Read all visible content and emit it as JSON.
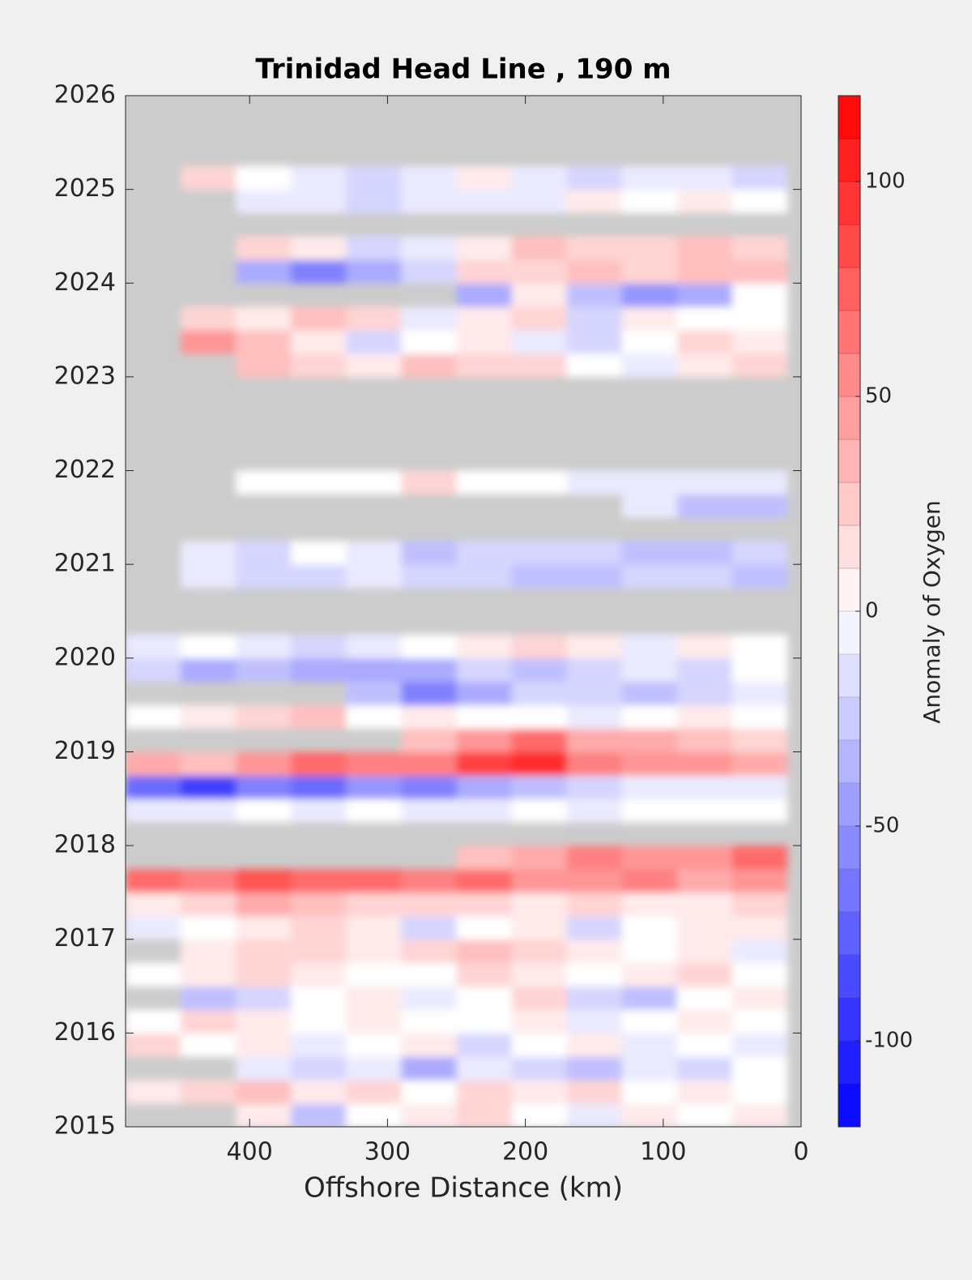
{
  "chart_data": {
    "type": "contour",
    "title": "Trinidad Head Line , 190 m",
    "xlabel": "Offshore Distance (km)",
    "colorbar_label": "Anomaly of Oxygen",
    "xlim": [
      490,
      0
    ],
    "xticks": [
      400,
      300,
      200,
      100,
      0
    ],
    "ylim": [
      2015,
      2026
    ],
    "yticks": [
      2015,
      2016,
      2017,
      2018,
      2019,
      2020,
      2021,
      2022,
      2023,
      2024,
      2025,
      2026
    ],
    "clim": [
      -120,
      120
    ],
    "cticks": [
      -100,
      -50,
      0,
      50,
      100
    ],
    "colormap": [
      "#0000ff",
      "#ffffff",
      "#ff0000"
    ],
    "missing_color": "#cccccc",
    "x": [
      470,
      430,
      390,
      350,
      310,
      270,
      230,
      190,
      150,
      110,
      70,
      30
    ],
    "y": [
      2015.125,
      2015.375,
      2015.625,
      2015.875,
      2016.125,
      2016.375,
      2016.625,
      2016.875,
      2017.125,
      2017.375,
      2017.625,
      2017.875,
      2018.125,
      2018.375,
      2018.625,
      2018.875,
      2019.125,
      2019.375,
      2019.625,
      2019.875,
      2020.125,
      2020.375,
      2020.625,
      2020.875,
      2021.125,
      2021.375,
      2021.625,
      2021.875,
      2022.125,
      2022.375,
      2022.625,
      2022.875,
      2023.125,
      2023.375,
      2023.625,
      2023.875,
      2024.125,
      2024.375,
      2024.625,
      2024.875,
      2025.125,
      2025.375,
      2025.625,
      2025.875
    ],
    "z": [
      [
        null,
        null,
        10,
        -30,
        0,
        10,
        20,
        0,
        -10,
        10,
        0,
        10
      ],
      [
        10,
        20,
        30,
        10,
        20,
        0,
        20,
        10,
        20,
        0,
        10,
        0
      ],
      [
        null,
        null,
        -10,
        -20,
        -10,
        -40,
        -10,
        -20,
        -30,
        -10,
        -20,
        0
      ],
      [
        20,
        0,
        10,
        -10,
        0,
        10,
        -20,
        0,
        10,
        -10,
        0,
        -10
      ],
      [
        0,
        20,
        10,
        0,
        10,
        0,
        0,
        10,
        -10,
        0,
        10,
        0
      ],
      [
        null,
        -30,
        -20,
        0,
        10,
        -10,
        0,
        20,
        -20,
        -30,
        0,
        10
      ],
      [
        0,
        10,
        20,
        10,
        0,
        0,
        20,
        10,
        0,
        10,
        20,
        0
      ],
      [
        null,
        10,
        20,
        20,
        10,
        20,
        30,
        20,
        10,
        0,
        10,
        -10
      ],
      [
        -10,
        0,
        10,
        20,
        10,
        -20,
        0,
        10,
        -20,
        0,
        10,
        10
      ],
      [
        10,
        20,
        40,
        30,
        20,
        20,
        20,
        10,
        20,
        10,
        10,
        20
      ],
      [
        70,
        60,
        80,
        70,
        70,
        60,
        70,
        50,
        50,
        60,
        40,
        50
      ],
      [
        null,
        null,
        null,
        null,
        null,
        null,
        30,
        40,
        60,
        50,
        50,
        70
      ],
      [
        null,
        null,
        null,
        null,
        null,
        null,
        null,
        null,
        null,
        null,
        null,
        null
      ],
      [
        -10,
        -10,
        0,
        -10,
        0,
        -10,
        -10,
        0,
        -10,
        0,
        0,
        0
      ],
      [
        -70,
        -90,
        -60,
        -70,
        -50,
        -60,
        -40,
        -30,
        -20,
        -10,
        -10,
        -10
      ],
      [
        40,
        30,
        50,
        70,
        60,
        60,
        90,
        100,
        60,
        50,
        50,
        40
      ],
      [
        null,
        null,
        null,
        null,
        null,
        30,
        50,
        70,
        40,
        40,
        30,
        20
      ],
      [
        0,
        10,
        20,
        30,
        0,
        10,
        0,
        0,
        -10,
        0,
        10,
        0
      ],
      [
        null,
        null,
        null,
        null,
        -30,
        -60,
        -40,
        -20,
        -20,
        -30,
        -20,
        -10
      ],
      [
        -20,
        -40,
        -30,
        -40,
        -40,
        -40,
        -20,
        -30,
        -20,
        -10,
        -20,
        0
      ],
      [
        -10,
        0,
        -10,
        -20,
        -10,
        0,
        10,
        20,
        10,
        -10,
        10,
        0
      ],
      [
        null,
        null,
        null,
        null,
        null,
        null,
        null,
        null,
        null,
        null,
        null,
        null
      ],
      [
        null,
        null,
        null,
        null,
        null,
        null,
        null,
        null,
        null,
        null,
        null,
        null
      ],
      [
        null,
        -10,
        -20,
        -20,
        -10,
        -20,
        -20,
        -30,
        -30,
        -20,
        -20,
        -30
      ],
      [
        null,
        -10,
        -20,
        0,
        -10,
        -30,
        -20,
        -20,
        -20,
        -30,
        -30,
        -20
      ],
      [
        null,
        null,
        null,
        null,
        null,
        null,
        null,
        null,
        null,
        null,
        null,
        null
      ],
      [
        null,
        null,
        null,
        null,
        null,
        null,
        null,
        null,
        null,
        -10,
        -30,
        -30
      ],
      [
        null,
        null,
        0,
        0,
        0,
        20,
        0,
        0,
        -10,
        -10,
        -10,
        -10
      ],
      [
        null,
        null,
        null,
        null,
        null,
        null,
        null,
        null,
        null,
        null,
        null,
        null
      ],
      [
        null,
        null,
        null,
        null,
        null,
        null,
        null,
        null,
        null,
        null,
        null,
        null
      ],
      [
        null,
        null,
        null,
        null,
        null,
        null,
        null,
        null,
        null,
        null,
        null,
        null
      ],
      [
        null,
        null,
        null,
        null,
        null,
        null,
        null,
        null,
        null,
        null,
        null,
        null
      ],
      [
        null,
        null,
        30,
        20,
        10,
        30,
        20,
        20,
        0,
        -10,
        10,
        20
      ],
      [
        null,
        50,
        30,
        10,
        -20,
        0,
        10,
        -10,
        -20,
        0,
        20,
        10
      ],
      [
        null,
        20,
        10,
        30,
        20,
        -10,
        10,
        20,
        -20,
        10,
        0,
        0
      ],
      [
        null,
        null,
        null,
        null,
        null,
        null,
        -40,
        10,
        -30,
        -50,
        -40,
        0
      ],
      [
        null,
        null,
        -40,
        -60,
        -40,
        -20,
        20,
        20,
        30,
        20,
        30,
        30
      ],
      [
        null,
        null,
        20,
        10,
        -20,
        -10,
        10,
        30,
        20,
        20,
        30,
        20
      ],
      [
        null,
        null,
        null,
        null,
        null,
        null,
        null,
        null,
        null,
        null,
        null,
        null
      ],
      [
        null,
        null,
        -10,
        -10,
        -20,
        -10,
        -10,
        -10,
        10,
        0,
        10,
        0
      ],
      [
        null,
        20,
        0,
        -10,
        -20,
        -10,
        10,
        -10,
        -20,
        -10,
        -10,
        -20
      ],
      [
        null,
        null,
        null,
        null,
        null,
        null,
        null,
        null,
        null,
        null,
        null,
        null
      ],
      [
        null,
        null,
        null,
        null,
        null,
        null,
        null,
        null,
        null,
        null,
        null,
        null
      ],
      [
        null,
        null,
        null,
        null,
        null,
        null,
        null,
        null,
        null,
        null,
        null,
        null
      ]
    ]
  }
}
